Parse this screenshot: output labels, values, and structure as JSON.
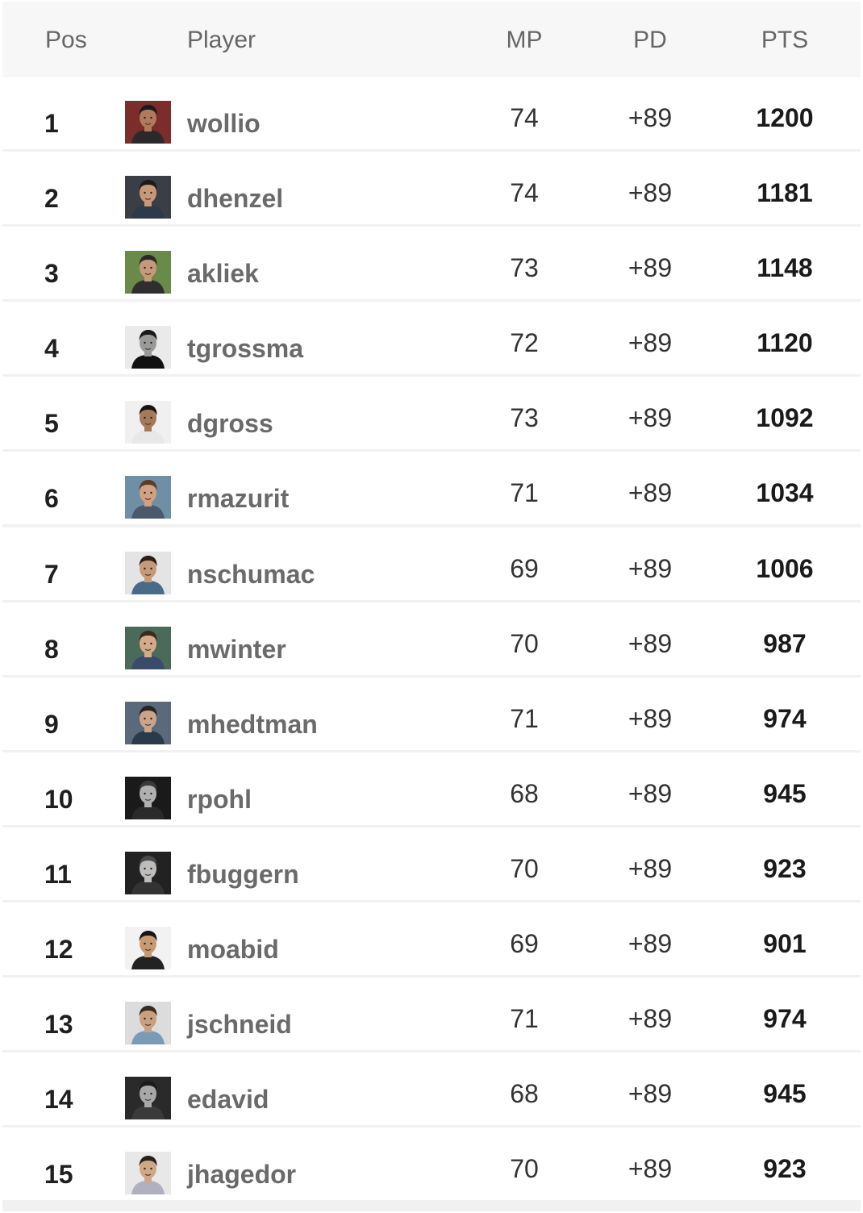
{
  "header": {
    "pos": "Pos",
    "player": "Player",
    "mp": "MP",
    "pd": "PD",
    "pts": "PTS"
  },
  "rows": [
    {
      "pos": "1",
      "player": "wollio",
      "mp": "74",
      "pd": "+89",
      "pts": "1200",
      "avatar": {
        "bg": "#7a2d2a",
        "skin": "#b07a5c",
        "hair": "#1a1a1a",
        "shirt": "#2a2a2a"
      }
    },
    {
      "pos": "2",
      "player": "dhenzel",
      "mp": "74",
      "pd": "+89",
      "pts": "1181",
      "avatar": {
        "bg": "#3b3f45",
        "skin": "#c8987a",
        "hair": "#1e1a18",
        "shirt": "#2c3a4a"
      }
    },
    {
      "pos": "3",
      "player": "akliek",
      "mp": "73",
      "pd": "+89",
      "pts": "1148",
      "avatar": {
        "bg": "#6a8a4a",
        "skin": "#c49a7a",
        "hair": "#2a2a2a",
        "shirt": "#2f2f2f"
      }
    },
    {
      "pos": "4",
      "player": "tgrossma",
      "mp": "72",
      "pd": "+89",
      "pts": "1120",
      "avatar": {
        "bg": "#eaeaea",
        "skin": "#9a9a9a",
        "hair": "#1a1a1a",
        "shirt": "#111111"
      }
    },
    {
      "pos": "5",
      "player": "dgross",
      "mp": "73",
      "pd": "+89",
      "pts": "1092",
      "avatar": {
        "bg": "#f0f0f0",
        "skin": "#a57a5c",
        "hair": "#1a1410",
        "shirt": "#e8e8e8"
      }
    },
    {
      "pos": "6",
      "player": "rmazurit",
      "mp": "71",
      "pd": "+89",
      "pts": "1034",
      "avatar": {
        "bg": "#6f8fa4",
        "skin": "#d2a082",
        "hair": "#5a3c28",
        "shirt": "#4a5a6a"
      }
    },
    {
      "pos": "7",
      "player": "nschumac",
      "mp": "69",
      "pd": "+89",
      "pts": "1006",
      "avatar": {
        "bg": "#e4e4e4",
        "skin": "#c59a7a",
        "hair": "#2a1e16",
        "shirt": "#4a6a8a"
      }
    },
    {
      "pos": "8",
      "player": "mwinter",
      "mp": "70",
      "pd": "+89",
      "pts": "987",
      "avatar": {
        "bg": "#4a6a5a",
        "skin": "#d4aa8a",
        "hair": "#3a2a1e",
        "shirt": "#3a4a6a"
      }
    },
    {
      "pos": "9",
      "player": "mhedtman",
      "mp": "71",
      "pd": "+89",
      "pts": "974",
      "avatar": {
        "bg": "#5a6a7a",
        "skin": "#caa48a",
        "hair": "#2a2420",
        "shirt": "#2a3a4a"
      }
    },
    {
      "pos": "10",
      "player": "rpohl",
      "mp": "68",
      "pd": "+89",
      "pts": "945",
      "avatar": {
        "bg": "#1a1a1a",
        "skin": "#b0b0b0",
        "hair": "#3a3a3a",
        "shirt": "#2a2a2a"
      }
    },
    {
      "pos": "11",
      "player": "fbuggern",
      "mp": "70",
      "pd": "+89",
      "pts": "923",
      "avatar": {
        "bg": "#222222",
        "skin": "#bdbdbd",
        "hair": "#4a4a4a",
        "shirt": "#333333"
      }
    },
    {
      "pos": "12",
      "player": "moabid",
      "mp": "69",
      "pd": "+89",
      "pts": "901",
      "avatar": {
        "bg": "#f2f2f2",
        "skin": "#c89a74",
        "hair": "#151515",
        "shirt": "#222222"
      }
    },
    {
      "pos": "13",
      "player": "jschneid",
      "mp": "71",
      "pd": "+89",
      "pts": "974",
      "avatar": {
        "bg": "#dcdcdc",
        "skin": "#c9a080",
        "hair": "#3a2a20",
        "shirt": "#7a9ab8"
      }
    },
    {
      "pos": "14",
      "player": "edavid",
      "mp": "68",
      "pd": "+89",
      "pts": "945",
      "avatar": {
        "bg": "#2a2a2a",
        "skin": "#a8a8a8",
        "hair": "#1c1c1c",
        "shirt": "#3a3a3a"
      }
    },
    {
      "pos": "15",
      "player": "jhagedor",
      "mp": "70",
      "pd": "+89",
      "pts": "923",
      "avatar": {
        "bg": "#e8e8e8",
        "skin": "#d0a888",
        "hair": "#2a2018",
        "shirt": "#b0b0c0"
      }
    }
  ]
}
